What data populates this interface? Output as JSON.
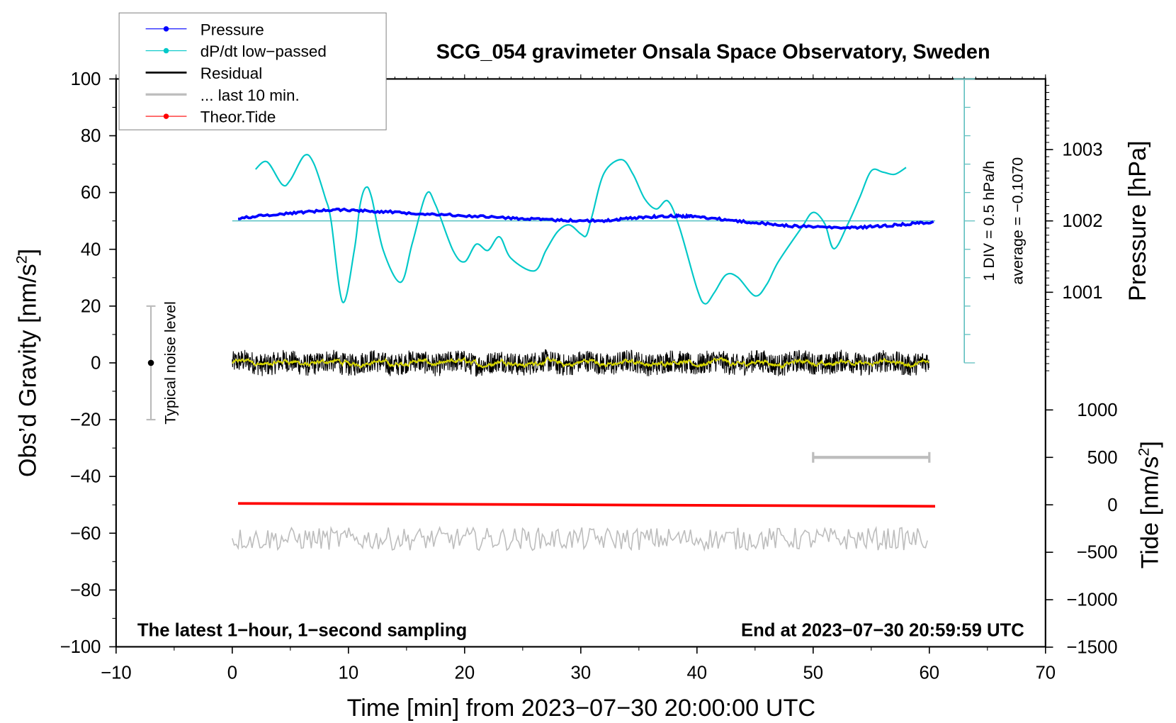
{
  "chart_data": {
    "type": "line",
    "title": "SCG_054 gravimeter Onsala Space Observatory, Sweden",
    "xlabel": "Time [min] from 2023−07−30 20:00:00 UTC",
    "ylabel": "Obs’d Gravity [nm/s",
    "ylabel_sup": "2",
    "ylabel_end": "]",
    "y2label": "Pressure [hPa]",
    "y3label": "Tide [nm/s",
    "y3label_sup": "2",
    "y3label_end": "]",
    "xlim": [
      -10,
      70
    ],
    "ylim": [
      -100,
      100
    ],
    "x_ticks": [
      "−10",
      "0",
      "10",
      "20",
      "30",
      "40",
      "50",
      "60",
      "70"
    ],
    "y_ticks": [
      "100",
      "80",
      "60",
      "40",
      "20",
      "0",
      "−20",
      "−40",
      "−60",
      "−80",
      "−100"
    ],
    "pressure_ticks": [
      "1003",
      "1002",
      "1001"
    ],
    "tide_ticks": [
      "1000",
      "500",
      "0",
      "−500",
      "−1000",
      "−1500"
    ],
    "legend": {
      "position": "top-left",
      "entries": [
        "Pressure",
        "dP/dt low−passed",
        "Residual",
        "... last 10 min.",
        "Theor.Tide"
      ]
    },
    "annotations": {
      "bottom_left": "The latest 1−hour, 1−second sampling",
      "bottom_right": "End at 2023−07−30 20:59:59 UTC",
      "div_scale": "1 DIV = 0.5 hPa/h",
      "average": "average = −0.1070",
      "noise_label": "Typical noise level"
    },
    "colors": {
      "pressure": "#0000ff",
      "dpdt": "#00c8c8",
      "residual": "#000000",
      "smooth": "#d8d800",
      "last10": "#bdbdbd",
      "tide": "#ff0000"
    },
    "series": [
      {
        "name": "Pressure",
        "unit": "hPa",
        "x": [
          0.5,
          5,
          9,
          13,
          18,
          24,
          28,
          32,
          35,
          38,
          40,
          44,
          48,
          53,
          57,
          60.5
        ],
        "values": [
          1002.04,
          1002.11,
          1002.16,
          1002.13,
          1002.09,
          1002.04,
          1002.01,
          1002.0,
          1002.05,
          1002.07,
          1002.06,
          1001.99,
          1001.93,
          1001.9,
          1001.94,
          1001.99
        ]
      },
      {
        "name": "dP/dt low-passed",
        "unit": "hPa/h",
        "x": [
          2,
          3,
          4.3,
          5,
          6.2,
          7,
          8,
          8.5,
          9.5,
          10.5,
          11,
          11.5,
          12,
          13,
          14.5,
          15.5,
          16.7,
          17.5,
          19,
          20,
          21,
          22,
          23,
          24,
          26,
          27,
          28,
          29,
          30,
          30.5,
          31,
          32,
          33.5,
          34.5,
          35.5,
          36.5,
          37.5,
          38.5,
          40,
          40.7,
          41.5,
          42.5,
          43.5,
          45,
          46,
          47,
          49,
          50,
          51,
          51.8,
          53,
          54,
          55,
          56,
          57,
          58
        ],
        "values": [
          0.91,
          1.04,
          0.64,
          0.72,
          1.15,
          1.02,
          0.41,
          0.01,
          -1.43,
          -0.52,
          0.28,
          0.59,
          0.41,
          -0.52,
          -1.08,
          -0.39,
          0.47,
          0.28,
          -0.52,
          -0.72,
          -0.41,
          -0.52,
          -0.28,
          -0.66,
          -0.88,
          -0.52,
          -0.19,
          -0.07,
          -0.23,
          -0.25,
          0.11,
          0.84,
          1.08,
          0.82,
          0.39,
          0.21,
          0.35,
          -0.12,
          -1.19,
          -1.46,
          -1.26,
          -0.95,
          -0.99,
          -1.32,
          -1.12,
          -0.72,
          -0.12,
          0.15,
          -0.05,
          -0.49,
          -0.05,
          0.41,
          0.88,
          0.86,
          0.82,
          0.94
        ]
      },
      {
        "name": "Residual",
        "unit": "nm/s2",
        "x_range": [
          0,
          60
        ],
        "mean": 0,
        "amplitude": 4
      },
      {
        "name": "... last 10 min.",
        "unit": "nm/s2",
        "x_range": [
          0,
          60
        ],
        "mean": -62,
        "amplitude": 4
      },
      {
        "name": "Theor.Tide",
        "unit": "nm/s2",
        "x": [
          0.5,
          60.5
        ],
        "values": [
          15,
          -15
        ]
      }
    ],
    "noise_bar": {
      "x": -7,
      "low": -20,
      "high": 20
    },
    "last10_bar": {
      "x_from": 50,
      "x_to": 60,
      "tide_value": 500
    }
  }
}
